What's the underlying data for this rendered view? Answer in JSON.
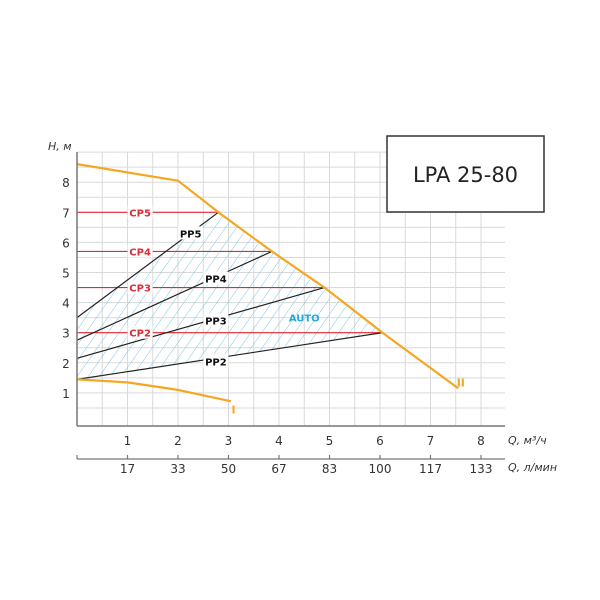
{
  "title_box": {
    "label": "LPA 25-80"
  },
  "colors": {
    "grid": "#d9d9d9",
    "axis": "#777777",
    "max_curve": "#f5a623",
    "cp": "#e02a36",
    "pp": "#222222",
    "hatch": "#7cc8e8",
    "auto": "#29a8dd"
  },
  "chart_data": {
    "type": "line",
    "title": "LPA 25-80",
    "ylabel": "H, м",
    "xlabel": "Q, м³/ч",
    "x2label": "Q, л/мин",
    "xlim": [
      0,
      8.5
    ],
    "ylim": [
      0,
      9
    ],
    "grid": true,
    "x_ticks": [
      1,
      2,
      3,
      4,
      5,
      6,
      7,
      8
    ],
    "x2_ticks": [
      17,
      33,
      50,
      67,
      83,
      100,
      117,
      133
    ],
    "y_ticks": [
      1,
      2,
      3,
      4,
      5,
      6,
      7,
      8
    ],
    "series": [
      {
        "name": "II",
        "kind": "max",
        "points": [
          [
            0,
            8.6
          ],
          [
            2,
            8.05
          ],
          [
            2.8,
            7.0
          ],
          [
            3.86,
            5.7
          ],
          [
            4.9,
            4.5
          ],
          [
            6.05,
            3.0
          ],
          [
            7.55,
            1.15
          ]
        ]
      },
      {
        "name": "I",
        "kind": "min",
        "points": [
          [
            0,
            1.45
          ],
          [
            1,
            1.35
          ],
          [
            2,
            1.1
          ],
          [
            3.05,
            0.72
          ]
        ]
      },
      {
        "name": "CP5",
        "kind": "cp",
        "points": [
          [
            0,
            7.0
          ],
          [
            2.8,
            7.0
          ]
        ]
      },
      {
        "name": "CP4",
        "kind": "cp",
        "points": [
          [
            0,
            5.7
          ],
          [
            3.86,
            5.7
          ]
        ]
      },
      {
        "name": "CP3",
        "kind": "cp",
        "points": [
          [
            0,
            4.5
          ],
          [
            4.9,
            4.5
          ]
        ]
      },
      {
        "name": "CP2",
        "kind": "cp",
        "points": [
          [
            0,
            3.0
          ],
          [
            6.05,
            3.0
          ]
        ]
      },
      {
        "name": "PP5",
        "kind": "pp",
        "points": [
          [
            0,
            3.5
          ],
          [
            2.8,
            7.0
          ]
        ]
      },
      {
        "name": "PP4",
        "kind": "pp",
        "points": [
          [
            0,
            2.75
          ],
          [
            3.86,
            5.7
          ]
        ]
      },
      {
        "name": "PP3",
        "kind": "pp",
        "points": [
          [
            0,
            2.15
          ],
          [
            4.9,
            4.5
          ]
        ]
      },
      {
        "name": "PP2",
        "kind": "pp",
        "points": [
          [
            0,
            1.45
          ],
          [
            6.05,
            3.0
          ]
        ]
      }
    ],
    "annotations": [
      {
        "text": "CP5",
        "x": 1.25,
        "y": 7.0,
        "kind": "cp"
      },
      {
        "text": "CP4",
        "x": 1.25,
        "y": 5.7,
        "kind": "cp"
      },
      {
        "text": "CP3",
        "x": 1.25,
        "y": 4.5,
        "kind": "cp"
      },
      {
        "text": "CP2",
        "x": 1.25,
        "y": 3.0,
        "kind": "cp"
      },
      {
        "text": "PP5",
        "x": 2.25,
        "y": 6.3,
        "kind": "pp"
      },
      {
        "text": "PP4",
        "x": 2.75,
        "y": 4.8,
        "kind": "pp"
      },
      {
        "text": "PP3",
        "x": 2.75,
        "y": 3.4,
        "kind": "pp"
      },
      {
        "text": "PP2",
        "x": 2.75,
        "y": 2.05,
        "kind": "pp"
      },
      {
        "text": "AUTO",
        "x": 4.5,
        "y": 3.5,
        "kind": "auto"
      },
      {
        "text": "I",
        "x": 3.1,
        "y": 0.45,
        "kind": "curve"
      },
      {
        "text": "II",
        "x": 7.6,
        "y": 1.35,
        "kind": "curve"
      }
    ],
    "auto_region": [
      [
        0,
        1.45
      ],
      [
        0,
        3.5
      ],
      [
        2.8,
        7.0
      ],
      [
        6.05,
        3.0
      ]
    ]
  }
}
